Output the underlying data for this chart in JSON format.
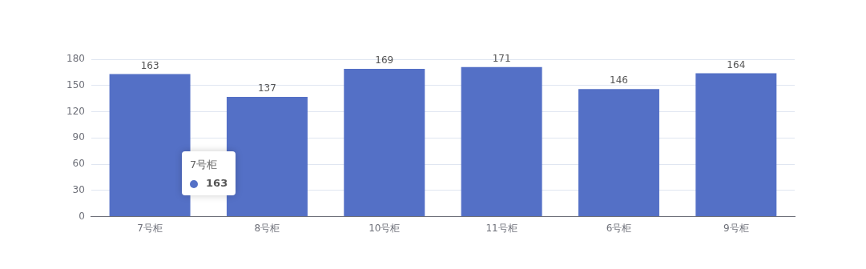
{
  "chart_data": {
    "type": "bar",
    "categories": [
      "7号柜",
      "8号柜",
      "10号柜",
      "11号柜",
      "6号柜",
      "9号柜"
    ],
    "values": [
      163,
      137,
      169,
      171,
      146,
      164
    ],
    "color": "#5470c6",
    "ylim": [
      0,
      180
    ],
    "yticks": [
      0,
      30,
      60,
      90,
      120,
      150,
      180
    ],
    "grid": "y",
    "legend": false,
    "data_labels": true,
    "annotations": [
      "7号柜",
      "163"
    ]
  }
}
